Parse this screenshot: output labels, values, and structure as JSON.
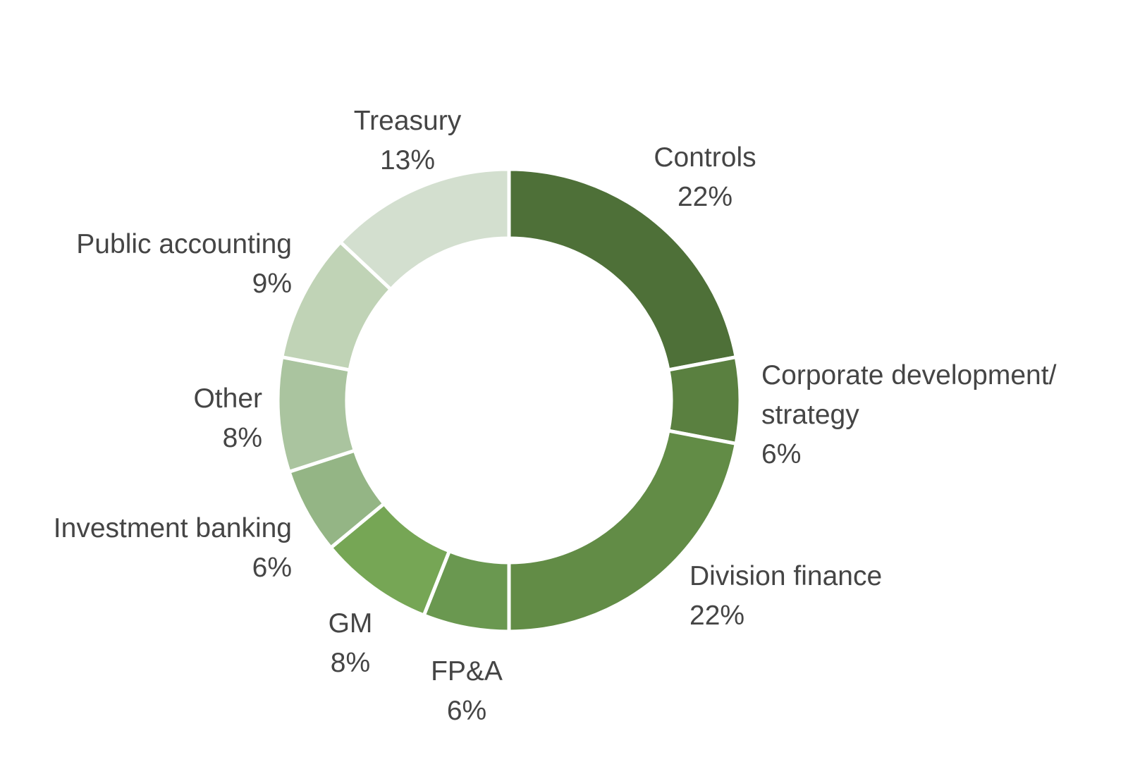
{
  "chart_data": {
    "type": "donut",
    "categories": [
      "Controls",
      "Corporate development/ strategy",
      "Division finance",
      "FP&A",
      "GM",
      "Investment banking",
      "Other",
      "Public accounting",
      "Treasury"
    ],
    "values": [
      22,
      6,
      22,
      6,
      8,
      6,
      8,
      9,
      13
    ],
    "value_labels": [
      "22%",
      "6%",
      "22%",
      "6%",
      "8%",
      "6%",
      "8%",
      "9%",
      "13%"
    ],
    "colors": [
      "#4e7038",
      "#5a8040",
      "#628c46",
      "#6a9850",
      "#76a655",
      "#94b585",
      "#aac49f",
      "#c0d3b6",
      "#d3dfcf"
    ]
  }
}
